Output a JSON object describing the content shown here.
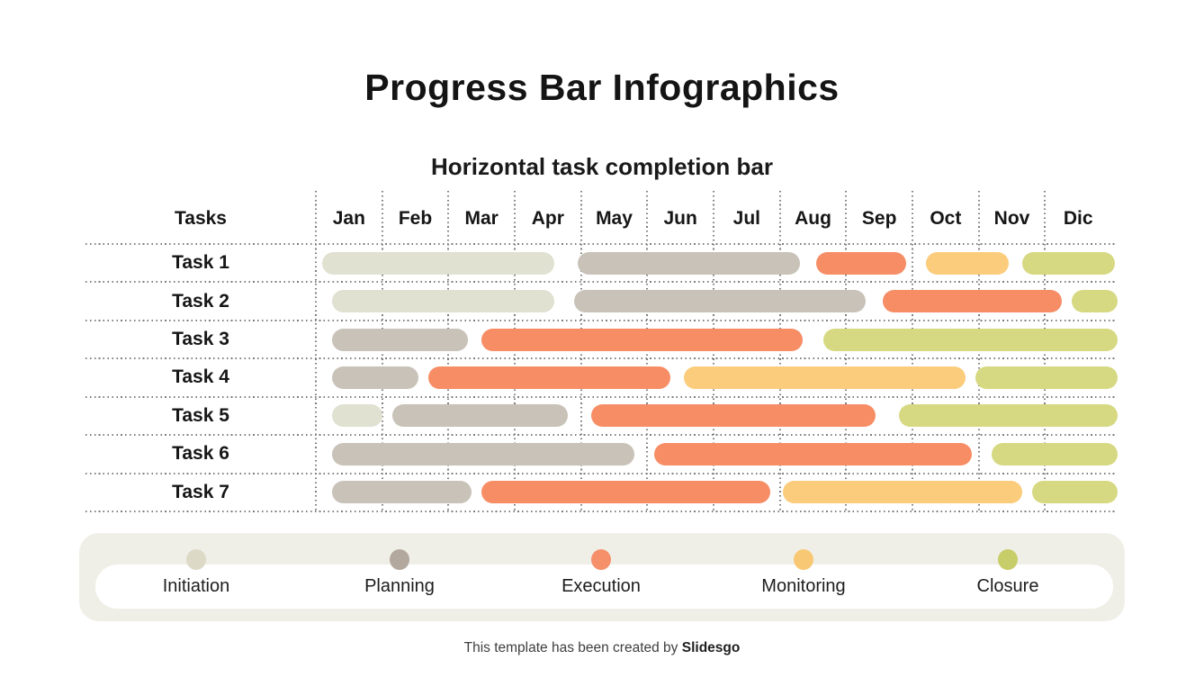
{
  "page": {
    "title": "Progress Bar Infographics",
    "subtitle": "Horizontal task completion bar",
    "footer_prefix": "This template has been created by ",
    "footer_brand": "Slidesgo"
  },
  "chart_data": {
    "type": "bar",
    "subtype": "gantt-horizontal",
    "title": "Horizontal task completion bar",
    "tasks_header": "Tasks",
    "months": [
      "Jan",
      "Feb",
      "Mar",
      "Apr",
      "May",
      "Jun",
      "Jul",
      "Aug",
      "Sep",
      "Oct",
      "Nov",
      "Dic"
    ],
    "axis": {
      "unit": "month",
      "start": 0,
      "end": 12,
      "grid": "dotted"
    },
    "legend_position": "bottom",
    "phases": [
      {
        "id": "initiation",
        "label": "Initiation",
        "bar_color": "#e0e1d1",
        "dot_color": "#dcd9c6"
      },
      {
        "id": "planning",
        "label": "Planning",
        "bar_color": "#c8c2b8",
        "dot_color": "#b2a89d"
      },
      {
        "id": "execution",
        "label": "Execution",
        "bar_color": "#f78d65",
        "dot_color": "#f5906a"
      },
      {
        "id": "monitoring",
        "label": "Monitoring",
        "bar_color": "#fbcc7c",
        "dot_color": "#f8c875"
      },
      {
        "id": "closure",
        "label": "Closure",
        "bar_color": "#d6d981",
        "dot_color": "#c7cd69"
      }
    ],
    "tasks": [
      {
        "name": "Task 1",
        "segments": [
          {
            "phase": "initiation",
            "start": 0.1,
            "end": 3.6
          },
          {
            "phase": "planning",
            "start": 3.95,
            "end": 7.3
          },
          {
            "phase": "execution",
            "start": 7.55,
            "end": 8.9
          },
          {
            "phase": "monitoring",
            "start": 9.2,
            "end": 10.45
          },
          {
            "phase": "closure",
            "start": 10.65,
            "end": 12.05
          }
        ]
      },
      {
        "name": "Task 2",
        "segments": [
          {
            "phase": "initiation",
            "start": 0.25,
            "end": 3.6
          },
          {
            "phase": "planning",
            "start": 3.9,
            "end": 8.3
          },
          {
            "phase": "execution",
            "start": 8.55,
            "end": 11.25
          },
          {
            "phase": "closure",
            "start": 11.4,
            "end": 12.1
          }
        ]
      },
      {
        "name": "Task 3",
        "segments": [
          {
            "phase": "planning",
            "start": 0.25,
            "end": 2.3
          },
          {
            "phase": "execution",
            "start": 2.5,
            "end": 7.35
          },
          {
            "phase": "closure",
            "start": 7.65,
            "end": 12.1
          }
        ]
      },
      {
        "name": "Task 4",
        "segments": [
          {
            "phase": "planning",
            "start": 0.25,
            "end": 1.55
          },
          {
            "phase": "execution",
            "start": 1.7,
            "end": 5.35
          },
          {
            "phase": "monitoring",
            "start": 5.55,
            "end": 9.8
          },
          {
            "phase": "closure",
            "start": 9.95,
            "end": 12.1
          }
        ]
      },
      {
        "name": "Task 5",
        "segments": [
          {
            "phase": "initiation",
            "start": 0.25,
            "end": 1.0
          },
          {
            "phase": "planning",
            "start": 1.15,
            "end": 3.8
          },
          {
            "phase": "execution",
            "start": 4.15,
            "end": 8.45
          },
          {
            "phase": "closure",
            "start": 8.8,
            "end": 12.1
          }
        ]
      },
      {
        "name": "Task 6",
        "segments": [
          {
            "phase": "planning",
            "start": 0.25,
            "end": 4.8
          },
          {
            "phase": "execution",
            "start": 5.1,
            "end": 9.9
          },
          {
            "phase": "closure",
            "start": 10.2,
            "end": 12.1
          }
        ]
      },
      {
        "name": "Task 7",
        "segments": [
          {
            "phase": "planning",
            "start": 0.25,
            "end": 2.35
          },
          {
            "phase": "execution",
            "start": 2.5,
            "end": 6.85
          },
          {
            "phase": "monitoring",
            "start": 7.05,
            "end": 10.65
          },
          {
            "phase": "closure",
            "start": 10.8,
            "end": 12.1
          }
        ]
      }
    ]
  },
  "colors": {
    "background": "#ffffff",
    "grid_dots": "#7e7e7e",
    "text": "#161616",
    "legend_panel": "#f0efe7",
    "legend_pill": "#ffffff",
    "footer_text": "#3e3e3e"
  }
}
